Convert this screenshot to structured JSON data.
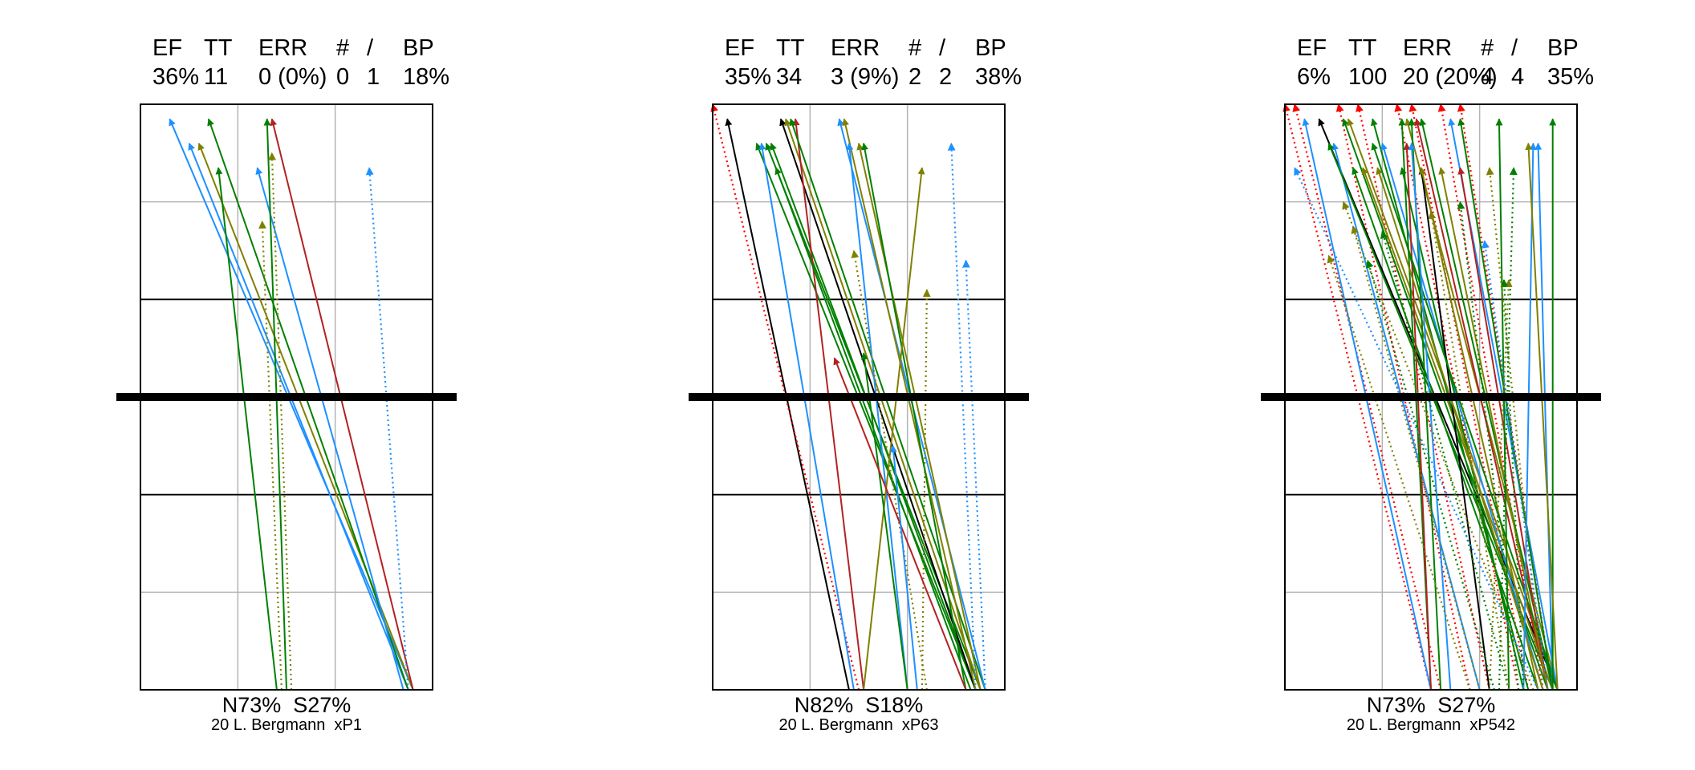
{
  "colors": {
    "blue": "#1e90ff",
    "green": "#008000",
    "olive": "#808000",
    "darkred": "#b22222",
    "red": "#ff0000",
    "black": "#000000",
    "grid": "#b4b4b4"
  },
  "chart_data": [
    {
      "type": "scatter",
      "description_style": "arrow chart",
      "header": {
        "labels": [
          "EF",
          "TT",
          "ERR",
          "#",
          "/",
          "BP"
        ],
        "values": [
          "36%",
          "11",
          "0 (0%)",
          "0",
          "1",
          "18%"
        ]
      },
      "footer": {
        "split": "N73%  S27%",
        "caption": "20 L. Bergmann  xP1"
      },
      "xlim": [
        0,
        3
      ],
      "ylim": [
        0,
        6
      ],
      "series": [
        {
          "color": "blue",
          "style": "solid",
          "from": [
            2.8,
            0.0
          ],
          "to": [
            0.3,
            5.85
          ]
        },
        {
          "color": "blue",
          "style": "solid",
          "from": [
            2.75,
            0.0
          ],
          "to": [
            0.5,
            5.6
          ]
        },
        {
          "color": "olive",
          "style": "solid",
          "from": [
            2.8,
            0.0
          ],
          "to": [
            0.6,
            5.6
          ]
        },
        {
          "color": "green",
          "style": "solid",
          "from": [
            2.75,
            0.0
          ],
          "to": [
            0.7,
            5.85
          ]
        },
        {
          "color": "green",
          "style": "solid",
          "from": [
            1.4,
            0.0
          ],
          "to": [
            0.8,
            5.35
          ]
        },
        {
          "color": "blue",
          "style": "solid",
          "from": [
            2.7,
            0.0
          ],
          "to": [
            1.2,
            5.35
          ]
        },
        {
          "color": "green",
          "style": "solid",
          "from": [
            1.5,
            0.0
          ],
          "to": [
            1.3,
            5.85
          ]
        },
        {
          "color": "darkred",
          "style": "solid",
          "from": [
            2.8,
            0.0
          ],
          "to": [
            1.35,
            5.85
          ]
        },
        {
          "color": "olive",
          "style": "dotted",
          "from": [
            1.55,
            0.0
          ],
          "to": [
            1.35,
            5.5
          ]
        },
        {
          "color": "olive",
          "style": "dotted",
          "from": [
            1.45,
            0.0
          ],
          "to": [
            1.25,
            4.8
          ]
        },
        {
          "color": "blue",
          "style": "dotted",
          "from": [
            2.75,
            0.0
          ],
          "to": [
            2.35,
            5.35
          ]
        }
      ]
    },
    {
      "type": "scatter",
      "description_style": "arrow chart",
      "header": {
        "labels": [
          "EF",
          "TT",
          "ERR",
          "#",
          "/",
          "BP"
        ],
        "values": [
          "35%",
          "34",
          "3 (9%)",
          "2",
          "2",
          "38%"
        ]
      },
      "footer": {
        "split": "N82%  S18%",
        "caption": "20 L. Bergmann  xP63"
      },
      "xlim": [
        0,
        3
      ],
      "ylim": [
        0,
        6
      ],
      "series": [
        {
          "color": "black",
          "style": "solid",
          "from": [
            1.4,
            0.0
          ],
          "to": [
            0.15,
            5.85
          ]
        },
        {
          "color": "red",
          "style": "dotted",
          "from": [
            1.5,
            0.0
          ],
          "to": [
            0.0,
            6.0
          ]
        },
        {
          "color": "green",
          "style": "solid",
          "from": [
            2.7,
            0.0
          ],
          "to": [
            0.45,
            5.6
          ]
        },
        {
          "color": "blue",
          "style": "solid",
          "from": [
            1.45,
            0.0
          ],
          "to": [
            0.5,
            5.6
          ]
        },
        {
          "color": "green",
          "style": "solid",
          "from": [
            2.75,
            0.0
          ],
          "to": [
            0.55,
            5.6
          ]
        },
        {
          "color": "green",
          "style": "solid",
          "from": [
            2.7,
            0.0
          ],
          "to": [
            0.6,
            5.6
          ]
        },
        {
          "color": "black",
          "style": "solid",
          "from": [
            2.7,
            0.0
          ],
          "to": [
            0.7,
            5.85
          ]
        },
        {
          "color": "olive",
          "style": "solid",
          "from": [
            2.75,
            0.0
          ],
          "to": [
            0.75,
            5.85
          ]
        },
        {
          "color": "darkred",
          "style": "solid",
          "from": [
            1.55,
            0.0
          ],
          "to": [
            0.85,
            5.85
          ]
        },
        {
          "color": "green",
          "style": "solid",
          "from": [
            2.8,
            0.0
          ],
          "to": [
            0.8,
            5.85
          ]
        },
        {
          "color": "green",
          "style": "solid",
          "from": [
            2.65,
            0.0
          ],
          "to": [
            0.65,
            5.35
          ]
        },
        {
          "color": "blue",
          "style": "solid",
          "from": [
            2.8,
            0.0
          ],
          "to": [
            1.3,
            5.85
          ]
        },
        {
          "color": "olive",
          "style": "solid",
          "from": [
            2.7,
            0.0
          ],
          "to": [
            1.35,
            5.85
          ]
        },
        {
          "color": "blue",
          "style": "solid",
          "from": [
            2.0,
            0.0
          ],
          "to": [
            1.4,
            5.6
          ]
        },
        {
          "color": "olive",
          "style": "solid",
          "from": [
            2.75,
            0.0
          ],
          "to": [
            1.5,
            5.6
          ]
        },
        {
          "color": "green",
          "style": "solid",
          "from": [
            2.6,
            0.0
          ],
          "to": [
            1.55,
            5.6
          ]
        },
        {
          "color": "olive",
          "style": "solid",
          "from": [
            1.55,
            0.0
          ],
          "to": [
            2.15,
            5.35
          ]
        },
        {
          "color": "green",
          "style": "solid",
          "from": [
            2.0,
            0.0
          ],
          "to": [
            1.55,
            3.45
          ]
        },
        {
          "color": "olive",
          "style": "dotted",
          "from": [
            2.2,
            0.0
          ],
          "to": [
            1.45,
            4.5
          ]
        },
        {
          "color": "blue",
          "style": "dotted",
          "from": [
            2.7,
            0.0
          ],
          "to": [
            2.45,
            5.6
          ]
        },
        {
          "color": "blue",
          "style": "dotted",
          "from": [
            2.8,
            0.0
          ],
          "to": [
            2.6,
            4.4
          ]
        },
        {
          "color": "olive",
          "style": "dotted",
          "from": [
            2.15,
            0.0
          ],
          "to": [
            2.2,
            4.1
          ]
        },
        {
          "color": "darkred",
          "style": "solid",
          "from": [
            2.6,
            0.0
          ],
          "to": [
            1.25,
            3.4
          ]
        },
        {
          "color": "blue",
          "style": "solid",
          "from": [
            2.1,
            0.0
          ],
          "to": [
            1.85,
            2.5
          ]
        }
      ]
    },
    {
      "type": "scatter",
      "description_style": "arrow chart",
      "header": {
        "labels": [
          "EF",
          "TT",
          "ERR",
          "#",
          "/",
          "BP"
        ],
        "values": [
          "6%",
          "100",
          "20 (20%)",
          "4",
          "4",
          "35%"
        ]
      },
      "footer": {
        "split": "N73%  S27%",
        "caption": "20 L. Bergmann  xP542"
      },
      "xlim": [
        0,
        3
      ],
      "ylim": [
        0,
        6
      ],
      "series": [
        {
          "color": "red",
          "style": "dotted",
          "from": [
            1.5,
            0.0
          ],
          "to": [
            0.0,
            6.0
          ]
        },
        {
          "color": "red",
          "style": "dotted",
          "from": [
            1.6,
            0.0
          ],
          "to": [
            0.1,
            6.0
          ]
        },
        {
          "color": "red",
          "style": "dotted",
          "from": [
            1.9,
            0.0
          ],
          "to": [
            0.55,
            6.0
          ]
        },
        {
          "color": "red",
          "style": "dotted",
          "from": [
            2.1,
            0.0
          ],
          "to": [
            0.75,
            6.0
          ]
        },
        {
          "color": "red",
          "style": "dotted",
          "from": [
            2.4,
            0.0
          ],
          "to": [
            1.15,
            6.0
          ]
        },
        {
          "color": "red",
          "style": "dotted",
          "from": [
            2.5,
            0.0
          ],
          "to": [
            1.3,
            6.0
          ]
        },
        {
          "color": "red",
          "style": "dotted",
          "from": [
            2.65,
            0.0
          ],
          "to": [
            1.6,
            6.0
          ]
        },
        {
          "color": "red",
          "style": "dotted",
          "from": [
            2.75,
            0.0
          ],
          "to": [
            1.8,
            6.0
          ]
        },
        {
          "color": "black",
          "style": "solid",
          "from": [
            2.8,
            0.0
          ],
          "to": [
            0.35,
            5.85
          ]
        },
        {
          "color": "blue",
          "style": "solid",
          "from": [
            1.5,
            0.0
          ],
          "to": [
            0.2,
            5.85
          ]
        },
        {
          "color": "blue",
          "style": "solid",
          "from": [
            2.0,
            0.0
          ],
          "to": [
            0.5,
            5.6
          ]
        },
        {
          "color": "green",
          "style": "solid",
          "from": [
            2.75,
            0.0
          ],
          "to": [
            0.45,
            5.6
          ]
        },
        {
          "color": "green",
          "style": "solid",
          "from": [
            2.7,
            0.0
          ],
          "to": [
            0.6,
            5.85
          ]
        },
        {
          "color": "olive",
          "style": "solid",
          "from": [
            2.8,
            0.0
          ],
          "to": [
            0.65,
            5.85
          ]
        },
        {
          "color": "green",
          "style": "solid",
          "from": [
            2.6,
            0.0
          ],
          "to": [
            0.7,
            5.35
          ]
        },
        {
          "color": "olive",
          "style": "solid",
          "from": [
            2.75,
            0.0
          ],
          "to": [
            0.8,
            5.35
          ]
        },
        {
          "color": "green",
          "style": "solid",
          "from": [
            2.5,
            0.0
          ],
          "to": [
            0.9,
            5.85
          ]
        },
        {
          "color": "blue",
          "style": "solid",
          "from": [
            2.65,
            0.0
          ],
          "to": [
            1.0,
            5.6
          ]
        },
        {
          "color": "green",
          "style": "solid",
          "from": [
            1.5,
            0.0
          ],
          "to": [
            1.2,
            5.85
          ]
        },
        {
          "color": "olive",
          "style": "solid",
          "from": [
            2.8,
            0.0
          ],
          "to": [
            1.25,
            5.85
          ]
        },
        {
          "color": "green",
          "style": "solid",
          "from": [
            1.6,
            0.0
          ],
          "to": [
            1.3,
            5.85
          ]
        },
        {
          "color": "darkred",
          "style": "solid",
          "from": [
            2.7,
            0.0
          ],
          "to": [
            1.35,
            5.85
          ]
        },
        {
          "color": "green",
          "style": "solid",
          "from": [
            2.45,
            0.0
          ],
          "to": [
            1.2,
            5.35
          ]
        },
        {
          "color": "black",
          "style": "solid",
          "from": [
            2.1,
            0.0
          ],
          "to": [
            1.4,
            5.35
          ]
        },
        {
          "color": "darkred",
          "style": "solid",
          "from": [
            1.5,
            0.0
          ],
          "to": [
            1.25,
            5.6
          ]
        },
        {
          "color": "green",
          "style": "solid",
          "from": [
            2.75,
            0.0
          ],
          "to": [
            1.4,
            5.85
          ]
        },
        {
          "color": "olive",
          "style": "solid",
          "from": [
            2.6,
            0.0
          ],
          "to": [
            1.4,
            5.35
          ]
        },
        {
          "color": "blue",
          "style": "solid",
          "from": [
            2.8,
            0.0
          ],
          "to": [
            1.7,
            5.85
          ]
        },
        {
          "color": "darkred",
          "style": "solid",
          "from": [
            2.7,
            0.0
          ],
          "to": [
            1.8,
            5.35
          ]
        },
        {
          "color": "green",
          "style": "solid",
          "from": [
            2.75,
            0.0
          ],
          "to": [
            1.8,
            5.85
          ]
        },
        {
          "color": "olive",
          "style": "solid",
          "from": [
            2.7,
            0.0
          ],
          "to": [
            1.6,
            5.35
          ]
        },
        {
          "color": "green",
          "style": "solid",
          "from": [
            2.8,
            0.0
          ],
          "to": [
            0.9,
            5.6
          ]
        },
        {
          "color": "olive",
          "style": "solid",
          "from": [
            2.65,
            0.0
          ],
          "to": [
            0.95,
            5.35
          ]
        },
        {
          "color": "blue",
          "style": "solid",
          "from": [
            1.7,
            0.0
          ],
          "to": [
            1.3,
            5.6
          ]
        },
        {
          "color": "green",
          "style": "solid",
          "from": [
            2.3,
            0.0
          ],
          "to": [
            2.2,
            5.85
          ]
        },
        {
          "color": "blue",
          "style": "solid",
          "from": [
            2.45,
            0.0
          ],
          "to": [
            2.55,
            5.6
          ]
        },
        {
          "color": "blue",
          "style": "solid",
          "from": [
            2.75,
            0.0
          ],
          "to": [
            2.6,
            5.6
          ]
        },
        {
          "color": "green",
          "style": "solid",
          "from": [
            2.75,
            0.0
          ],
          "to": [
            2.75,
            5.85
          ]
        },
        {
          "color": "olive",
          "style": "solid",
          "from": [
            2.8,
            0.0
          ],
          "to": [
            2.5,
            5.6
          ]
        },
        {
          "color": "green",
          "style": "dotted",
          "from": [
            2.2,
            0.0
          ],
          "to": [
            2.35,
            5.35
          ]
        },
        {
          "color": "olive",
          "style": "dotted",
          "from": [
            2.1,
            0.0
          ],
          "to": [
            2.3,
            4.2
          ]
        },
        {
          "color": "green",
          "style": "dotted",
          "from": [
            2.45,
            0.0
          ],
          "to": [
            2.25,
            4.2
          ]
        },
        {
          "color": "olive",
          "style": "dotted",
          "from": [
            1.9,
            0.0
          ],
          "to": [
            0.45,
            4.45
          ]
        },
        {
          "color": "olive",
          "style": "dotted",
          "from": [
            2.0,
            0.0
          ],
          "to": [
            0.7,
            4.75
          ]
        },
        {
          "color": "green",
          "style": "dotted",
          "from": [
            2.3,
            0.0
          ],
          "to": [
            1.0,
            4.7
          ]
        },
        {
          "color": "blue",
          "style": "dotted",
          "from": [
            2.6,
            0.0
          ],
          "to": [
            0.1,
            5.35
          ]
        },
        {
          "color": "olive",
          "style": "dotted",
          "from": [
            2.55,
            0.0
          ],
          "to": [
            0.6,
            5.0
          ]
        },
        {
          "color": "green",
          "style": "dotted",
          "from": [
            2.4,
            0.0
          ],
          "to": [
            1.8,
            5.0
          ]
        },
        {
          "color": "olive",
          "style": "dotted",
          "from": [
            2.65,
            0.0
          ],
          "to": [
            2.1,
            5.35
          ]
        },
        {
          "color": "olive",
          "style": "dotted",
          "from": [
            2.3,
            0.0
          ],
          "to": [
            1.5,
            4.9
          ]
        },
        {
          "color": "green",
          "style": "dotted",
          "from": [
            2.15,
            0.0
          ],
          "to": [
            0.85,
            4.4
          ]
        },
        {
          "color": "blue",
          "style": "dotted",
          "from": [
            2.7,
            0.0
          ],
          "to": [
            2.05,
            4.6
          ]
        }
      ]
    }
  ]
}
